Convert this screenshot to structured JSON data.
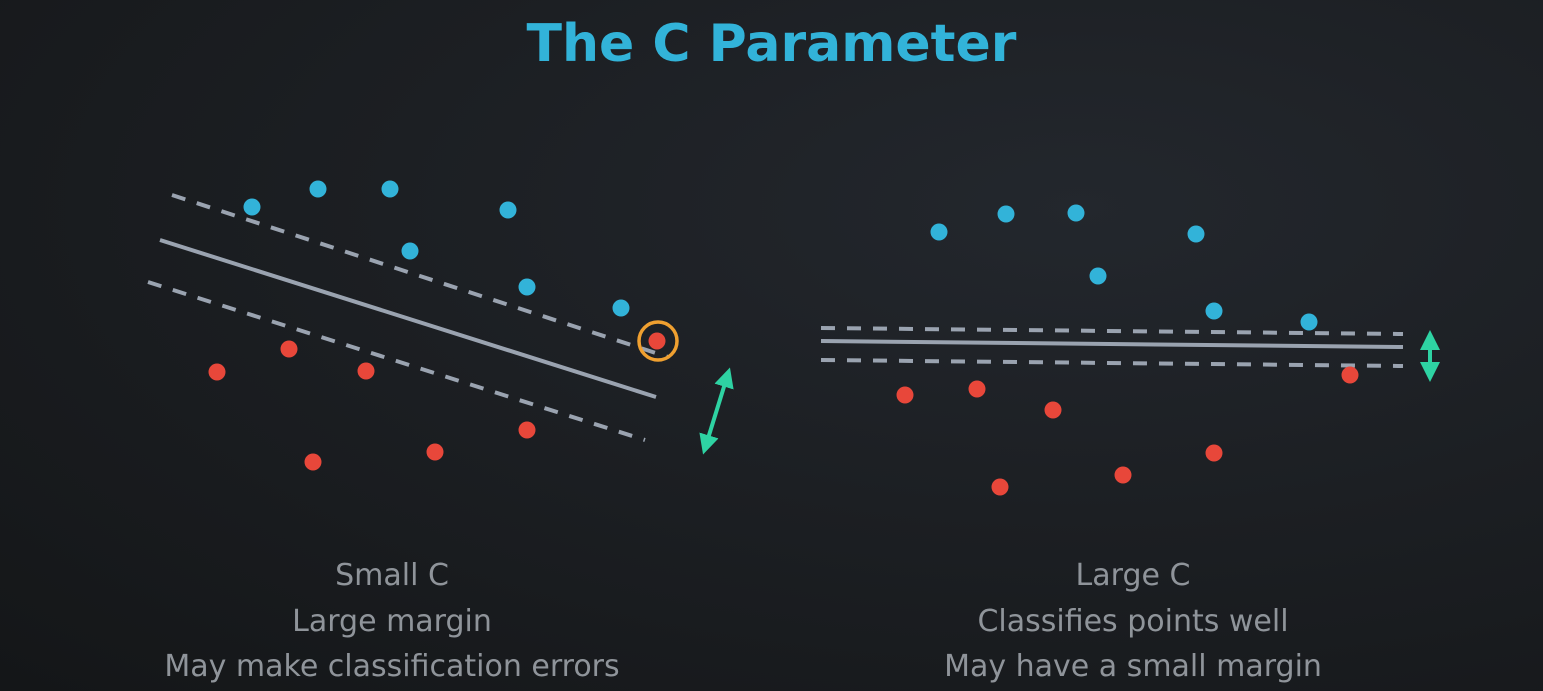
{
  "title": "The C Parameter",
  "colors": {
    "title": "#32b3d9",
    "blue_points": "#32b3d9",
    "red_points": "#e8473a",
    "boundary": "#9aa3b0",
    "margin_arrow": "#2ed3a3",
    "highlight_ring": "#f0a030",
    "caption": "#8f949a"
  },
  "panels": [
    {
      "id": "small-c",
      "caption_lines": [
        "Small C",
        "Large margin",
        "May make classification errors"
      ],
      "has_misclassified_highlight": true,
      "margin": "large"
    },
    {
      "id": "large-c",
      "caption_lines": [
        "Large C",
        "Classifies points well",
        "May have a small margin"
      ],
      "has_misclassified_highlight": false,
      "margin": "small"
    }
  ]
}
